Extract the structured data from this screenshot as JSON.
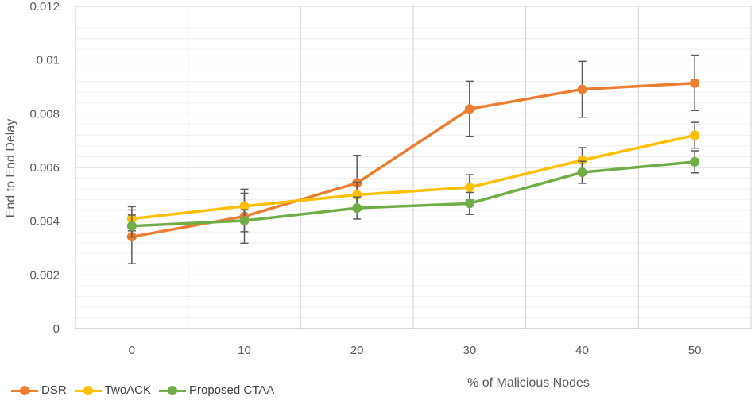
{
  "chart_data": {
    "type": "line",
    "title": "",
    "xlabel": "% of Malicious Nodes",
    "ylabel": "End to End Delay",
    "categories": [
      "0",
      "10",
      "20",
      "30",
      "40",
      "50"
    ],
    "ylim": [
      0,
      0.012
    ],
    "yticks": [
      0,
      0.002,
      0.004,
      0.006,
      0.008,
      0.01,
      0.012
    ],
    "ytick_labels": [
      "0",
      "0.002",
      "0.004",
      "0.006",
      "0.008",
      "0.01",
      "0.012"
    ],
    "grid": true,
    "legend_position": "bottom-left",
    "series": [
      {
        "name": "DSR",
        "color": "#ED7D31",
        "values": [
          0.00342,
          0.00418,
          0.00542,
          0.00818,
          0.00891,
          0.00914
        ],
        "error_low": [
          0.00242,
          0.00318,
          0.0044,
          0.00716,
          0.00787,
          0.00812
        ],
        "error_high": [
          0.00442,
          0.00519,
          0.00645,
          0.00921,
          0.00995,
          0.01018
        ]
      },
      {
        "name": "TwoACK",
        "color": "#FFC000",
        "values": [
          0.00409,
          0.00456,
          0.00498,
          0.00526,
          0.00627,
          0.0072
        ],
        "error_low": [
          0.00364,
          0.00408,
          0.00451,
          0.00479,
          0.0058,
          0.00672
        ],
        "error_high": [
          0.00454,
          0.00504,
          0.00545,
          0.00573,
          0.00674,
          0.00768
        ]
      },
      {
        "name": "Proposed CTAA",
        "color": "#70AD47",
        "values": [
          0.00382,
          0.00402,
          0.00449,
          0.00466,
          0.00582,
          0.00621
        ],
        "error_low": [
          0.00341,
          0.00361,
          0.00408,
          0.00425,
          0.00541,
          0.0058
        ],
        "error_high": [
          0.00423,
          0.00443,
          0.0049,
          0.00507,
          0.00623,
          0.00662
        ]
      }
    ]
  }
}
